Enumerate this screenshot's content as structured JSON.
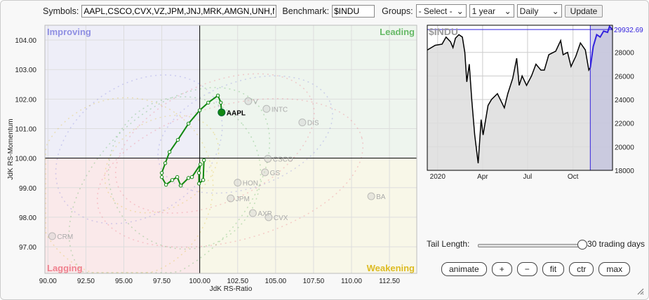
{
  "toolbar": {
    "symbols_label": "Symbols:",
    "symbols_value": "AAPL,CSCO,CVX,VZ,JPM,JNJ,MRK,AMGN,UNH,M",
    "benchmark_label": "Benchmark:",
    "benchmark_value": "$INDU",
    "groups_label": "Groups:",
    "groups_value": "- Select -",
    "period_value": "1 year",
    "frequency_value": "Daily",
    "update_label": "Update"
  },
  "rrg": {
    "quadrants": {
      "improving": "Improving",
      "leading": "Leading",
      "lagging": "Lagging",
      "weakening": "Weakening"
    },
    "colors": {
      "improving": "#7777dd",
      "leading": "#44aa44",
      "lagging": "#ee6677",
      "weakening": "#ddbb22"
    },
    "xlabel": "JdK RS-Ratio",
    "ylabel": "JdK RS-Momentum",
    "xticks": [
      "90.00",
      "92.50",
      "95.00",
      "97.50",
      "100.00",
      "102.50",
      "105.00",
      "107.50",
      "110.00",
      "112.50"
    ],
    "yticks": [
      "97.00",
      "98.00",
      "99.00",
      "100.00",
      "101.00",
      "102.00",
      "103.00",
      "104.00"
    ],
    "xlim": [
      89.8,
      114.3
    ],
    "ylim": [
      96.1,
      104.5
    ],
    "highlight": {
      "symbol": "AAPL",
      "color": "#118811",
      "tail": [
        [
          100.28,
          99.93
        ],
        [
          100.23,
          99.26
        ],
        [
          99.95,
          99.14
        ],
        [
          99.95,
          99.5
        ],
        [
          100.05,
          99.79
        ],
        [
          99.49,
          99.36
        ],
        [
          99.26,
          99.33
        ],
        [
          98.75,
          99.07
        ],
        [
          98.52,
          99.36
        ],
        [
          98.19,
          99.26
        ],
        [
          97.78,
          99.1
        ],
        [
          97.5,
          99.36
        ],
        [
          97.5,
          99.5
        ],
        [
          97.73,
          99.83
        ],
        [
          98.01,
          100.21
        ],
        [
          98.56,
          100.62
        ],
        [
          99.26,
          101.17
        ],
        [
          100.0,
          101.62
        ],
        [
          100.56,
          101.88
        ],
        [
          101.2,
          102.12
        ],
        [
          101.39,
          101.88
        ],
        [
          101.44,
          101.55
        ]
      ]
    },
    "others": [
      {
        "symbol": "INTC",
        "x": 104.4,
        "y": 101.67
      },
      {
        "symbol": "DIS",
        "x": 106.76,
        "y": 101.21
      },
      {
        "symbol": "CSCO",
        "x": 104.49,
        "y": 99.98
      },
      {
        "symbol": "GS",
        "x": 104.3,
        "y": 99.52
      },
      {
        "symbol": "HON",
        "x": 102.5,
        "y": 99.17
      },
      {
        "symbol": "JPM",
        "x": 102.04,
        "y": 98.64
      },
      {
        "symbol": "AXP",
        "x": 103.5,
        "y": 98.14
      },
      {
        "symbol": "CVX",
        "x": 104.54,
        "y": 98.0
      },
      {
        "symbol": "BA",
        "x": 111.3,
        "y": 98.71
      },
      {
        "symbol": "CRM",
        "x": 90.28,
        "y": 97.36
      },
      {
        "symbol": "V",
        "x": 103.2,
        "y": 101.93
      }
    ]
  },
  "benchmark_chart": {
    "title": "$INDU",
    "last_value": "29932.69",
    "last": 29932.69,
    "yticks": [
      "28000",
      "26000",
      "24000",
      "22000",
      "20000",
      "18000"
    ],
    "ylim": [
      18000,
      30300
    ],
    "xlabels": [
      {
        "label": "2020",
        "day": 0
      },
      {
        "label": "Apr",
        "day": 91
      },
      {
        "label": "Jul",
        "day": 182
      },
      {
        "label": "Oct",
        "day": 274
      }
    ],
    "xlim": [
      -21,
      354
    ],
    "highlight_from_day": 309,
    "series": [
      [
        -21,
        28200
      ],
      [
        -5,
        28600
      ],
      [
        9,
        28700
      ],
      [
        17,
        29300
      ],
      [
        26,
        28900
      ],
      [
        31,
        28400
      ],
      [
        36,
        29200
      ],
      [
        43,
        29500
      ],
      [
        50,
        29300
      ],
      [
        55,
        28000
      ],
      [
        59,
        25500
      ],
      [
        64,
        27000
      ],
      [
        69,
        24000
      ],
      [
        75,
        21000
      ],
      [
        82,
        18600
      ],
      [
        88,
        22300
      ],
      [
        92,
        21000
      ],
      [
        102,
        23500
      ],
      [
        109,
        24000
      ],
      [
        121,
        24500
      ],
      [
        135,
        23300
      ],
      [
        142,
        24500
      ],
      [
        152,
        25800
      ],
      [
        160,
        27500
      ],
      [
        165,
        25200
      ],
      [
        171,
        26000
      ],
      [
        180,
        25200
      ],
      [
        190,
        26000
      ],
      [
        199,
        27000
      ],
      [
        209,
        26500
      ],
      [
        216,
        26500
      ],
      [
        225,
        27800
      ],
      [
        239,
        28100
      ],
      [
        249,
        29000
      ],
      [
        254,
        27800
      ],
      [
        263,
        28000
      ],
      [
        270,
        26800
      ],
      [
        280,
        27700
      ],
      [
        289,
        28800
      ],
      [
        299,
        28200
      ],
      [
        306,
        26500
      ],
      [
        309,
        26700
      ],
      [
        315,
        28500
      ],
      [
        322,
        29500
      ],
      [
        329,
        29300
      ],
      [
        336,
        29800
      ],
      [
        344,
        29700
      ],
      [
        348,
        30200
      ],
      [
        354,
        29900
      ]
    ]
  },
  "controls": {
    "tail_label": "Tail Length:",
    "tail_value": "30 trading days",
    "tail_fraction": 1.0,
    "buttons": [
      "animate",
      "+",
      "−",
      "fit",
      "ctr",
      "max"
    ]
  }
}
